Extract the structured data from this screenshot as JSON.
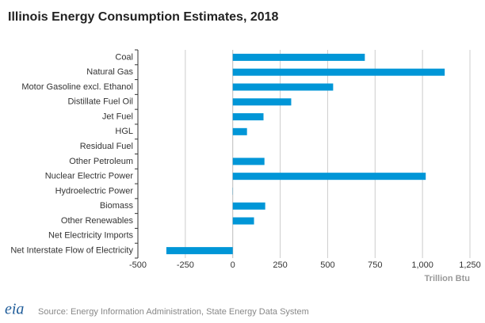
{
  "chart_data": {
    "type": "barh",
    "title": "Illinois Energy Consumption Estimates, 2018",
    "categories": [
      "Coal",
      "Natural Gas",
      "Motor Gasoline excl. Ethanol",
      "Distillate Fuel Oil",
      "Jet Fuel",
      "HGL",
      "Residual Fuel",
      "Other Petroleum",
      "Nuclear Electric Power",
      "Hydroelectric Power",
      "Biomass",
      "Other Renewables",
      "Net Electricity Imports",
      "Net Interstate Flow of Electricity"
    ],
    "values": [
      696,
      1117,
      529,
      308,
      162,
      75,
      0,
      167,
      1017,
      1,
      171,
      112,
      0,
      -350
    ],
    "color": "#0096d7",
    "xlim": [
      -500,
      1250
    ],
    "xticks": [
      -500,
      -250,
      0,
      250,
      500,
      750,
      {
        "value": 1000,
        "label": "1,000"
      },
      {
        "value": 1250,
        "label": "1,250"
      }
    ],
    "xlabel": "Trillion Btu",
    "grid": true,
    "source": "Source: Energy Information Administration, State Energy Data System",
    "logo": "eia"
  }
}
